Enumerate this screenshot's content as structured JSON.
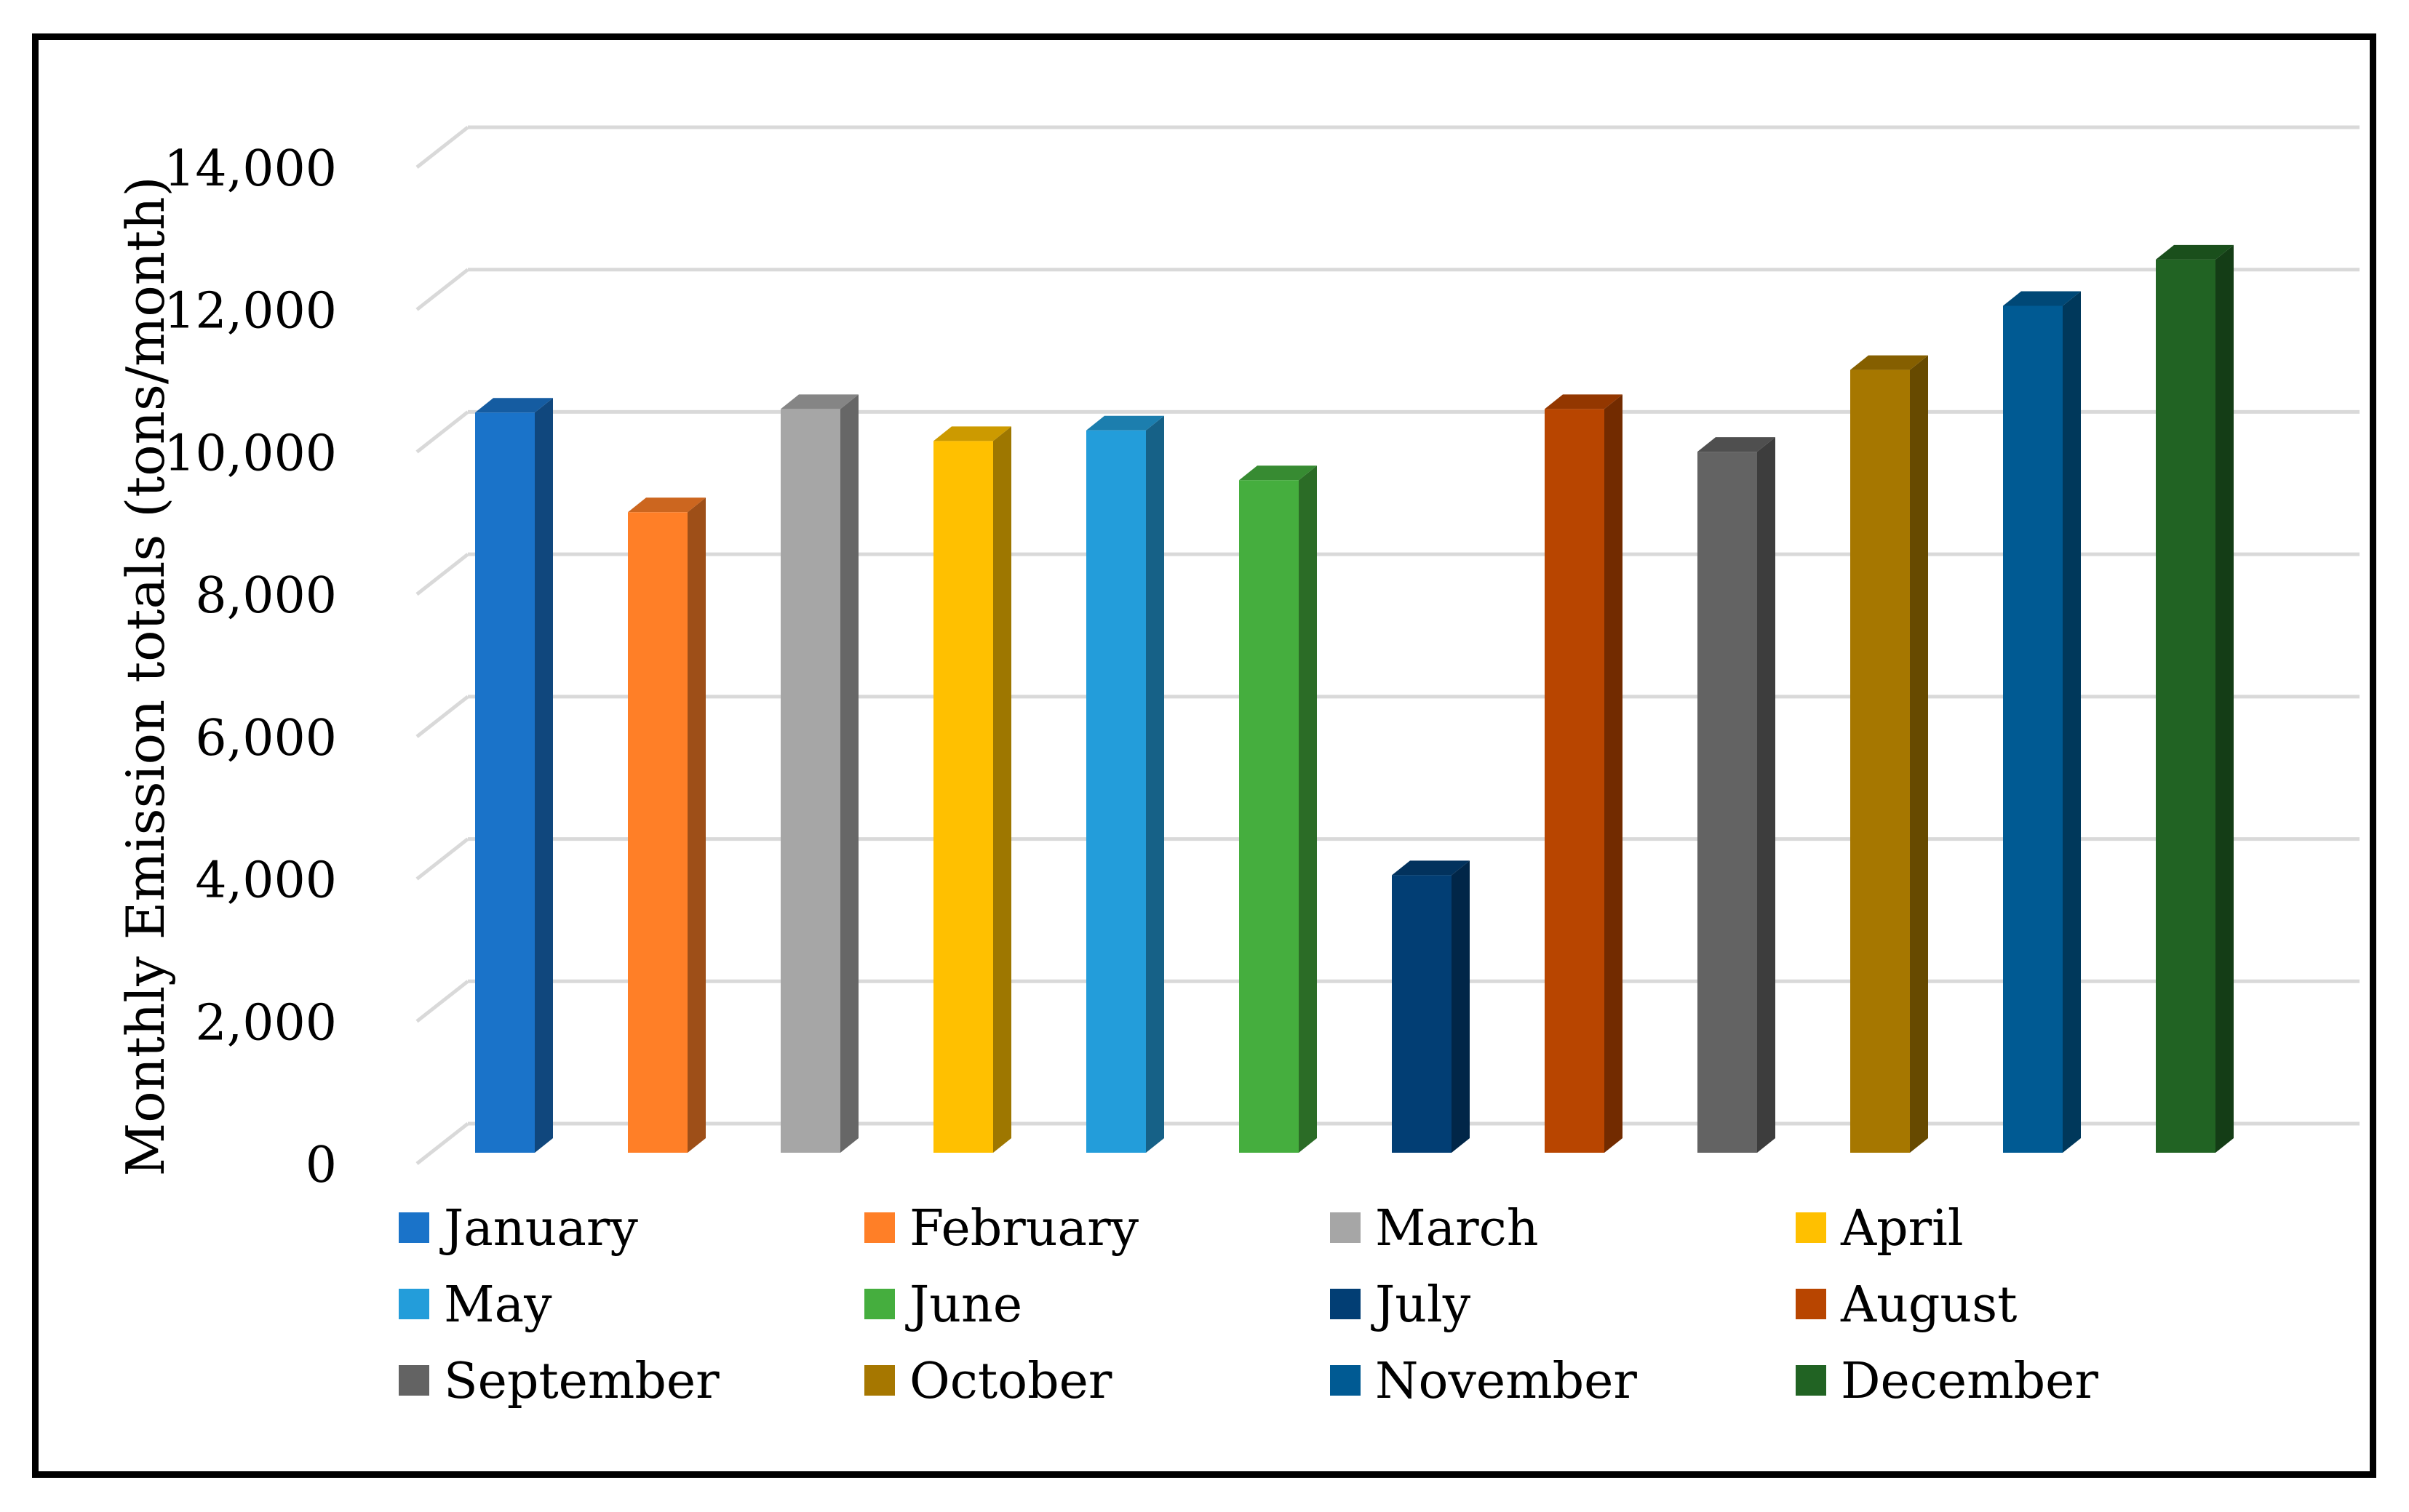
{
  "chart_data": {
    "type": "bar",
    "style": "3d-column",
    "title": "",
    "xlabel": "",
    "ylabel": "Monthly Emission totals (tons/month)",
    "ylim": [
      0,
      14000
    ],
    "yticks": [
      0,
      2000,
      4000,
      6000,
      8000,
      10000,
      12000,
      14000
    ],
    "ytick_labels": [
      "0",
      "2,000",
      "4,000",
      "6,000",
      "8,000",
      "10,000",
      "12,000",
      "14,000"
    ],
    "grid": true,
    "legend_position": "bottom",
    "categories": [
      "January",
      "February",
      "March",
      "April",
      "May",
      "June",
      "July",
      "August",
      "September",
      "October",
      "November",
      "December"
    ],
    "values": [
      10400,
      9000,
      10450,
      10000,
      10150,
      9450,
      3900,
      10450,
      9850,
      11000,
      11900,
      12550
    ],
    "colors": [
      "#1A73C9",
      "#FF7F27",
      "#A6A6A6",
      "#FFC000",
      "#239DDA",
      "#45AE3E",
      "#023E74",
      "#B84500",
      "#636363",
      "#A67700",
      "#005A93",
      "#216323"
    ]
  }
}
